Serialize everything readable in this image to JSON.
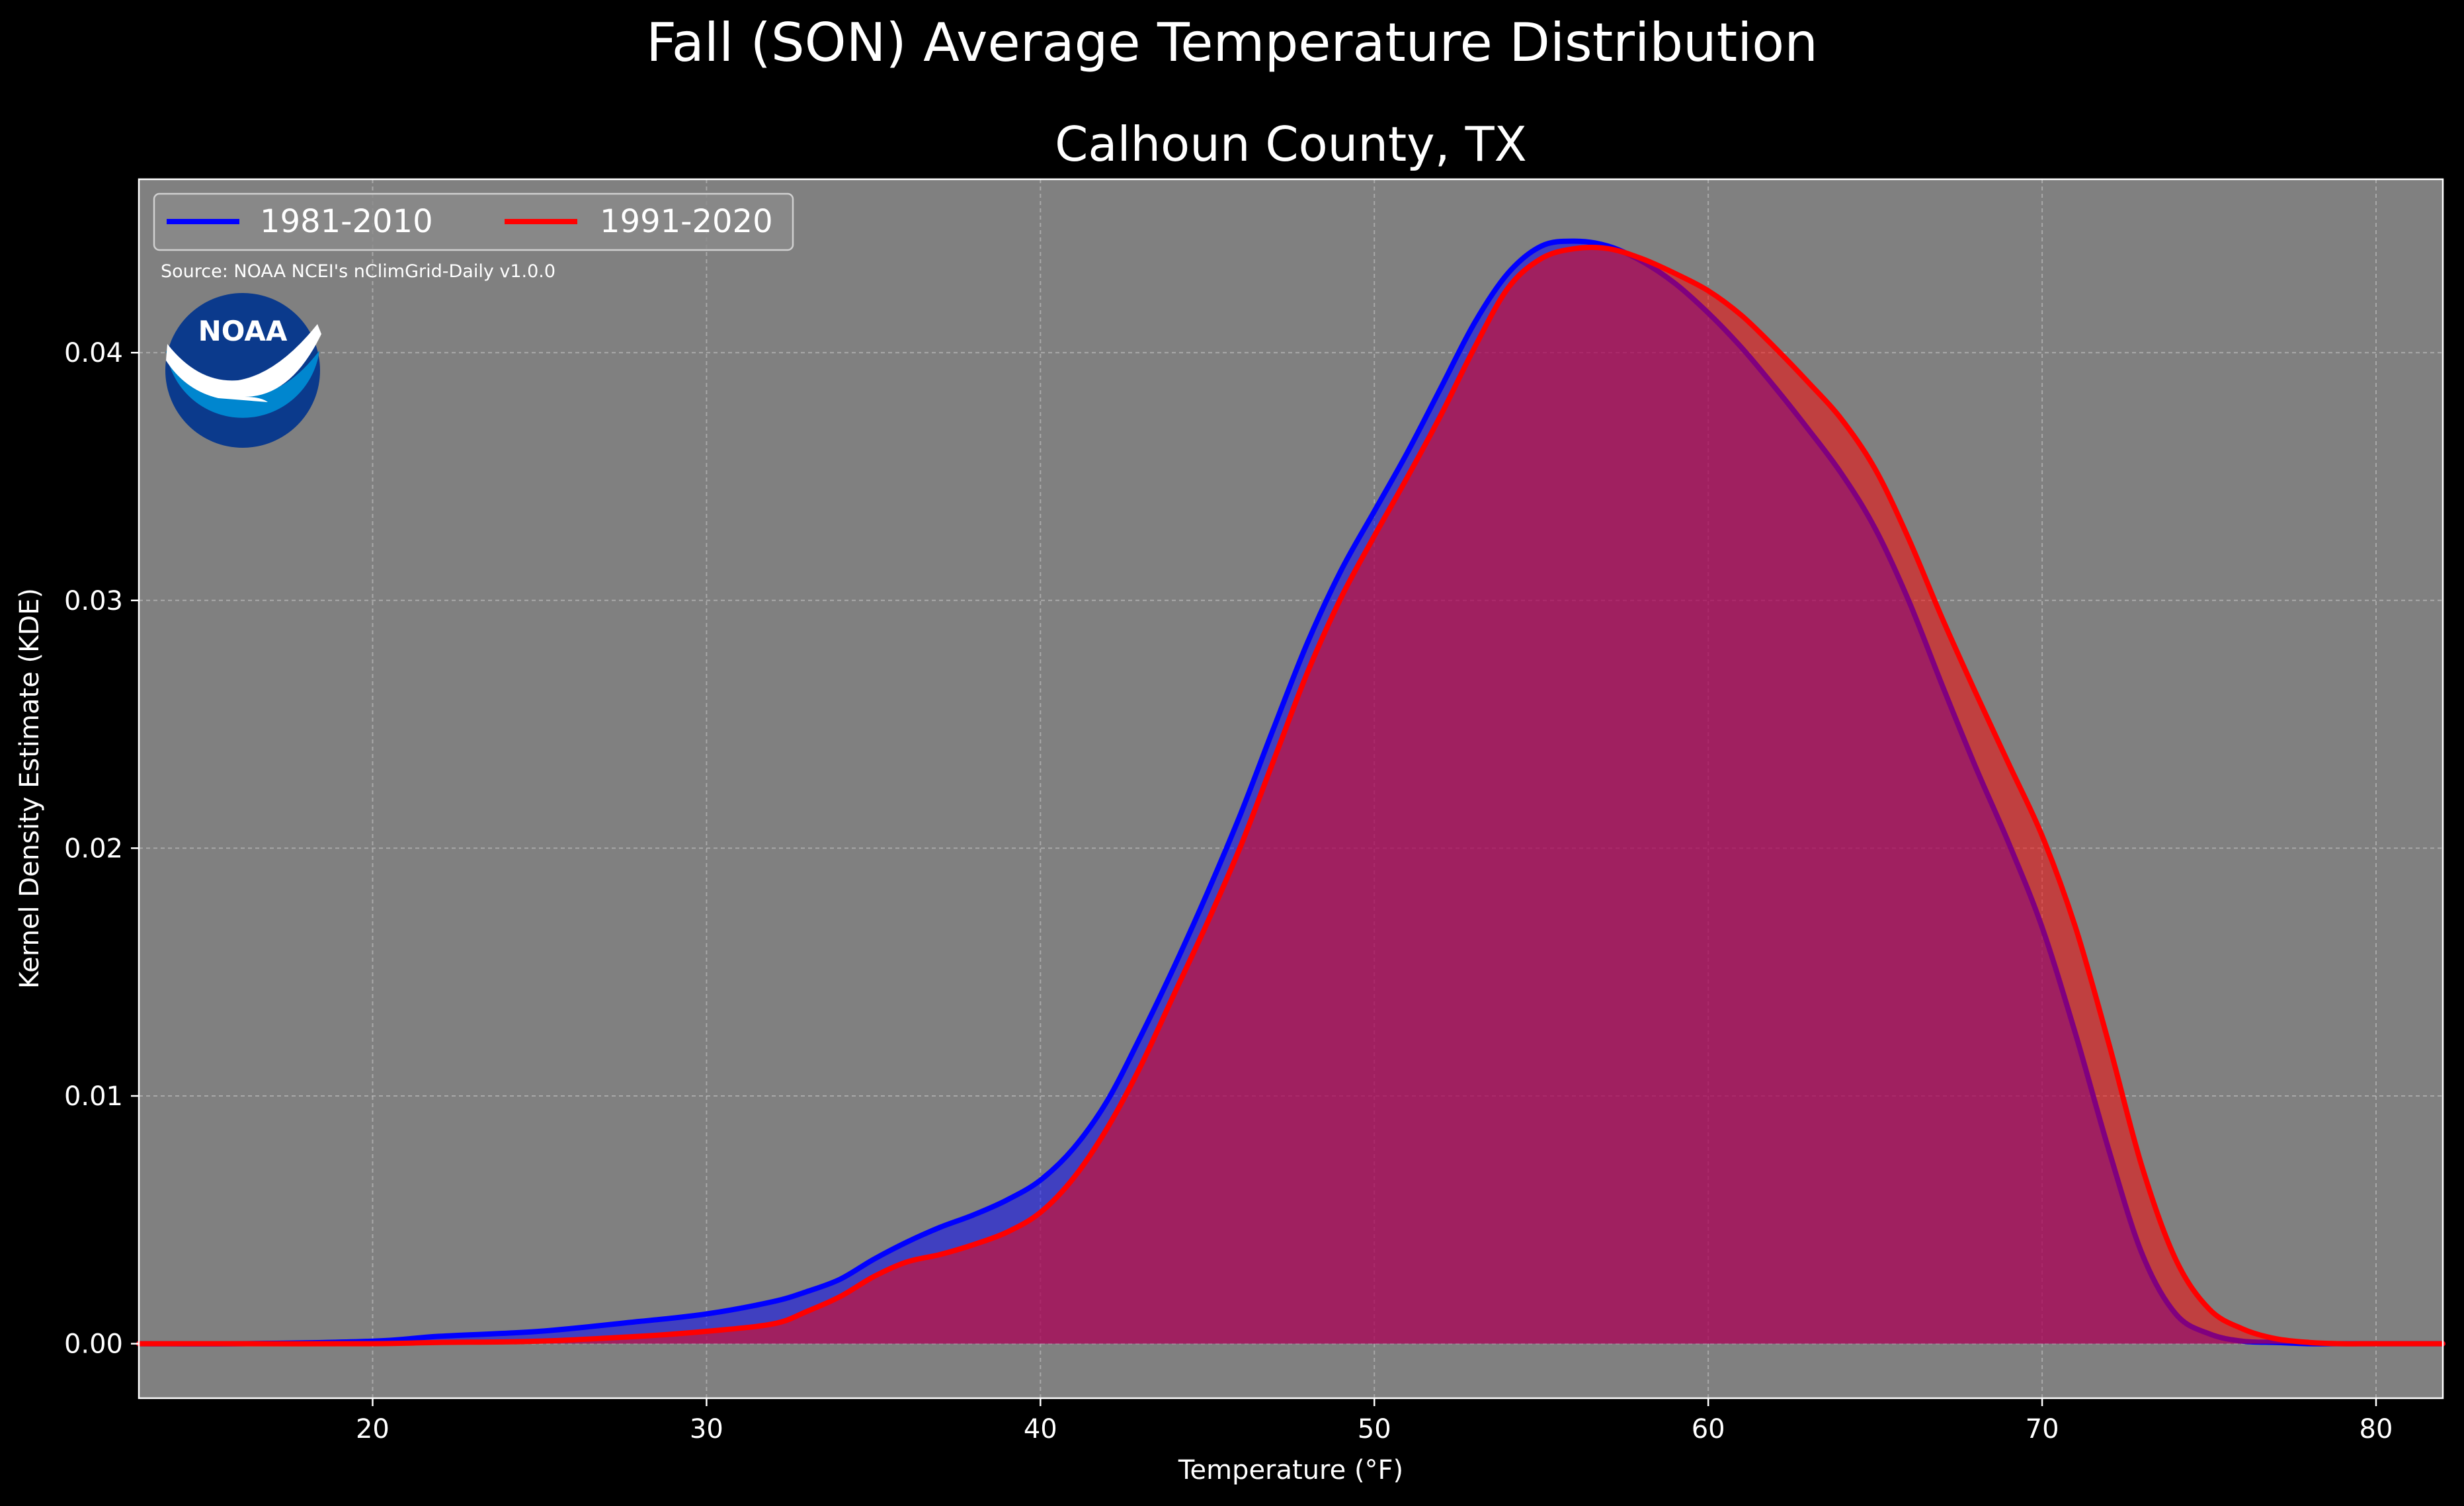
{
  "chart_data": {
    "type": "area",
    "suptitle": "Fall (SON) Average Temperature Distribution",
    "title": "Calhoun County, TX",
    "xlabel": "Temperature (°F)",
    "ylabel": "Kernel Density Estimate (KDE)",
    "source": "Source: NOAA NCEI's nClimGrid-Daily v1.0.0",
    "logo_text": "NOAA",
    "xlim": [
      13,
      82
    ],
    "ylim": [
      -0.0022,
      0.047
    ],
    "x_ticks": [
      20,
      30,
      40,
      50,
      60,
      70,
      80
    ],
    "y_ticks": [
      0.0,
      0.01,
      0.02,
      0.03,
      0.04
    ],
    "x_tick_labels": [
      "20",
      "30",
      "40",
      "50",
      "60",
      "70",
      "80"
    ],
    "y_tick_labels": [
      "0.00",
      "0.01",
      "0.02",
      "0.03",
      "0.04"
    ],
    "grid": true,
    "legend_position": "top-left",
    "colors": {
      "background": "#000000",
      "axes": "#808080",
      "series_1": "#0000ff",
      "series_2": "#ff0000",
      "noaa_dark": "#0b3a8c",
      "noaa_light": "#0086cf"
    },
    "series": [
      {
        "name": "1981-2010",
        "color": "#0000ff",
        "x": [
          13,
          16,
          20,
          22,
          25,
          28,
          30,
          32,
          33,
          34,
          35,
          36,
          37,
          38,
          39,
          40,
          41,
          42,
          43,
          44,
          45,
          46,
          47,
          48,
          49,
          50,
          51,
          52,
          53,
          54,
          55,
          56,
          57,
          58,
          59,
          60,
          61,
          62,
          63,
          64,
          65,
          66,
          67,
          68,
          69,
          70,
          71,
          72,
          73,
          74,
          75,
          76,
          77,
          78,
          79,
          80,
          82
        ],
        "y": [
          0,
          0,
          0.0001,
          0.0003,
          0.0005,
          0.0009,
          0.0012,
          0.0017,
          0.0021,
          0.0026,
          0.0034,
          0.0041,
          0.0047,
          0.0052,
          0.0058,
          0.0066,
          0.0079,
          0.0098,
          0.0124,
          0.0152,
          0.0182,
          0.0214,
          0.0249,
          0.0283,
          0.0312,
          0.0336,
          0.036,
          0.0386,
          0.0412,
          0.0432,
          0.0443,
          0.0445,
          0.0443,
          0.0437,
          0.0428,
          0.0416,
          0.0402,
          0.0386,
          0.0369,
          0.0351,
          0.0329,
          0.03,
          0.0266,
          0.0233,
          0.0202,
          0.0168,
          0.0125,
          0.0078,
          0.0036,
          0.0012,
          0.0004,
          0.0001,
          5e-05,
          0,
          0,
          0,
          0
        ]
      },
      {
        "name": "1991-2020",
        "color": "#ff0000",
        "x": [
          13,
          16,
          20,
          22,
          25,
          28,
          30,
          32,
          33,
          34,
          35,
          36,
          37,
          38,
          39,
          40,
          41,
          42,
          43,
          44,
          45,
          46,
          47,
          48,
          49,
          50,
          51,
          52,
          53,
          54,
          55,
          56,
          57,
          58,
          59,
          60,
          61,
          62,
          63,
          64,
          65,
          66,
          67,
          68,
          69,
          70,
          71,
          72,
          73,
          74,
          75,
          76,
          77,
          78,
          79,
          80,
          82
        ],
        "y": [
          0,
          0,
          0,
          5e-05,
          0.0001,
          0.0003,
          0.0005,
          0.0008,
          0.0013,
          0.0019,
          0.0027,
          0.0033,
          0.0036,
          0.004,
          0.0045,
          0.0053,
          0.0067,
          0.0087,
          0.0112,
          0.0141,
          0.017,
          0.0201,
          0.0236,
          0.0271,
          0.0301,
          0.0326,
          0.035,
          0.0375,
          0.0402,
          0.0426,
          0.0438,
          0.0442,
          0.0442,
          0.0438,
          0.0432,
          0.0425,
          0.0415,
          0.0402,
          0.0388,
          0.0373,
          0.0353,
          0.0325,
          0.0293,
          0.0263,
          0.0234,
          0.0205,
          0.0168,
          0.0121,
          0.0071,
          0.0034,
          0.0014,
          0.0006,
          0.0002,
          5e-05,
          0,
          0,
          0
        ]
      }
    ]
  }
}
